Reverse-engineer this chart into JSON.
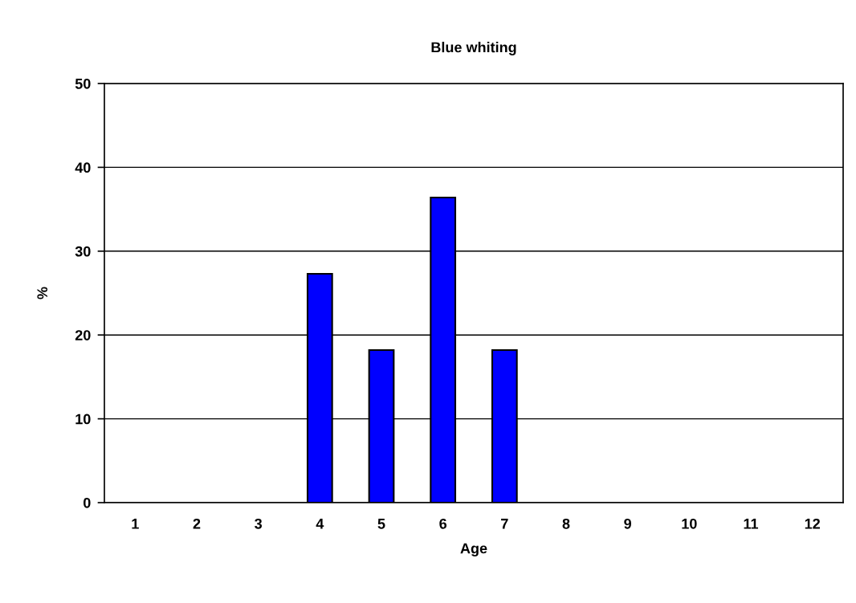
{
  "chart_data": {
    "type": "bar",
    "title": "Blue whiting",
    "xlabel": "Age",
    "ylabel": "%",
    "categories": [
      "1",
      "2",
      "3",
      "4",
      "5",
      "6",
      "7",
      "8",
      "9",
      "10",
      "11",
      "12"
    ],
    "values": [
      0,
      0,
      0,
      27.3,
      18.2,
      36.4,
      18.2,
      0,
      0,
      0,
      0,
      0
    ],
    "color": "#0000ff",
    "ylim": [
      0,
      50
    ],
    "yticks": [
      0,
      10,
      20,
      30,
      40,
      50
    ],
    "grid": "y",
    "legend": false
  }
}
